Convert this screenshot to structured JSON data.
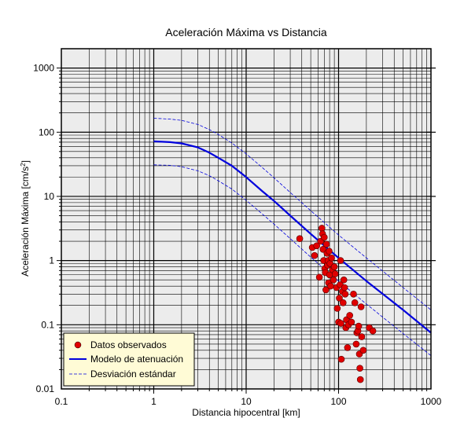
{
  "chart_data": {
    "type": "scatter",
    "title": "Aceleración Máxima vs Distancia",
    "xlabel": "Distancia hipocentral [km]",
    "ylabel_main": "Aceleración Máxima [cm/s",
    "ylabel_sup": "2",
    "ylabel_tail": "]",
    "x_scale": "log",
    "y_scale": "log",
    "xlim": [
      0.1,
      1000
    ],
    "ylim": [
      0.01,
      2000
    ],
    "x_ticks": [
      {
        "value": 0.1,
        "label": "0.1"
      },
      {
        "value": 1,
        "label": "1"
      },
      {
        "value": 10,
        "label": "10"
      },
      {
        "value": 100,
        "label": "100"
      },
      {
        "value": 1000,
        "label": "1000"
      }
    ],
    "y_ticks": [
      {
        "value": 0.01,
        "label": "0.01"
      },
      {
        "value": 0.1,
        "label": "0.1"
      },
      {
        "value": 1,
        "label": "1"
      },
      {
        "value": 10,
        "label": "10"
      },
      {
        "value": 100,
        "label": "100"
      },
      {
        "value": 1000,
        "label": "1000"
      }
    ],
    "grid": true,
    "plot_background": "#ececec",
    "legend_position": "bottom-left",
    "legend_background": "#fffbd6",
    "series": [
      {
        "name": "Datos observados",
        "kind": "points",
        "color": "#e00000",
        "points": [
          [
            38,
            2.2
          ],
          [
            52,
            1.6
          ],
          [
            55,
            1.2
          ],
          [
            58,
            1.7
          ],
          [
            62,
            0.55
          ],
          [
            64,
            2.0
          ],
          [
            66,
            3.2
          ],
          [
            67,
            2.6
          ],
          [
            68,
            1.5
          ],
          [
            69,
            1.0
          ],
          [
            70,
            2.3
          ],
          [
            71,
            0.75
          ],
          [
            72,
            0.65
          ],
          [
            73,
            0.35
          ],
          [
            74,
            1.8
          ],
          [
            75,
            1.3
          ],
          [
            76,
            0.85
          ],
          [
            77,
            1.0
          ],
          [
            78,
            0.45
          ],
          [
            79,
            1.4
          ],
          [
            80,
            0.6
          ],
          [
            81,
            0.9
          ],
          [
            82,
            0.4
          ],
          [
            84,
            1.1
          ],
          [
            86,
            0.72
          ],
          [
            88,
            0.5
          ],
          [
            90,
            0.8
          ],
          [
            92,
            0.62
          ],
          [
            95,
            0.38
          ],
          [
            97,
            0.18
          ],
          [
            100,
            0.11
          ],
          [
            102,
            0.26
          ],
          [
            104,
            0.42
          ],
          [
            105,
            1.0
          ],
          [
            106,
            0.105
          ],
          [
            107,
            0.029
          ],
          [
            110,
            0.33
          ],
          [
            112,
            0.22
          ],
          [
            114,
            0.5
          ],
          [
            116,
            0.38
          ],
          [
            118,
            0.3
          ],
          [
            120,
            0.09
          ],
          [
            122,
            0.12
          ],
          [
            125,
            0.044
          ],
          [
            128,
            0.1
          ],
          [
            132,
            0.14
          ],
          [
            138,
            0.11
          ],
          [
            145,
            0.3
          ],
          [
            150,
            0.22
          ],
          [
            155,
            0.05
          ],
          [
            158,
            0.075
          ],
          [
            162,
            0.08
          ],
          [
            165,
            0.095
          ],
          [
            168,
            0.035
          ],
          [
            170,
            0.021
          ],
          [
            172,
            0.014
          ],
          [
            175,
            0.19
          ],
          [
            178,
            0.065
          ],
          [
            185,
            0.04
          ],
          [
            215,
            0.09
          ],
          [
            235,
            0.08
          ]
        ]
      },
      {
        "name": "Modelo de atenuación",
        "kind": "line",
        "color": "#0000dd",
        "points": [
          [
            1,
            72
          ],
          [
            1.5,
            70
          ],
          [
            2,
            67
          ],
          [
            3,
            58
          ],
          [
            4,
            48
          ],
          [
            5,
            40
          ],
          [
            7,
            30
          ],
          [
            10,
            20
          ],
          [
            15,
            12
          ],
          [
            20,
            8.5
          ],
          [
            30,
            5
          ],
          [
            50,
            2.6
          ],
          [
            100,
            1.1
          ],
          [
            200,
            0.48
          ],
          [
            500,
            0.17
          ],
          [
            1000,
            0.075
          ]
        ]
      },
      {
        "name": "Desviación estándar",
        "kind": "dashed",
        "color": "#0000dd",
        "lines": [
          [
            [
              1,
              165
            ],
            [
              1.5,
              160
            ],
            [
              2,
              153
            ],
            [
              3,
              132
            ],
            [
              4,
              110
            ],
            [
              5,
              92
            ],
            [
              7,
              68
            ],
            [
              10,
              46
            ],
            [
              15,
              28
            ],
            [
              20,
              19.5
            ],
            [
              30,
              11.5
            ],
            [
              50,
              6
            ],
            [
              100,
              2.5
            ],
            [
              200,
              1.1
            ],
            [
              500,
              0.38
            ],
            [
              1000,
              0.17
            ]
          ],
          [
            [
              1,
              31
            ],
            [
              1.5,
              30.5
            ],
            [
              2,
              29
            ],
            [
              3,
              25
            ],
            [
              4,
              21
            ],
            [
              5,
              17.5
            ],
            [
              7,
              13
            ],
            [
              10,
              8.7
            ],
            [
              15,
              5.3
            ],
            [
              20,
              3.7
            ],
            [
              30,
              2.2
            ],
            [
              50,
              1.13
            ],
            [
              100,
              0.48
            ],
            [
              200,
              0.21
            ],
            [
              500,
              0.073
            ],
            [
              1000,
              0.033
            ]
          ]
        ]
      }
    ]
  }
}
